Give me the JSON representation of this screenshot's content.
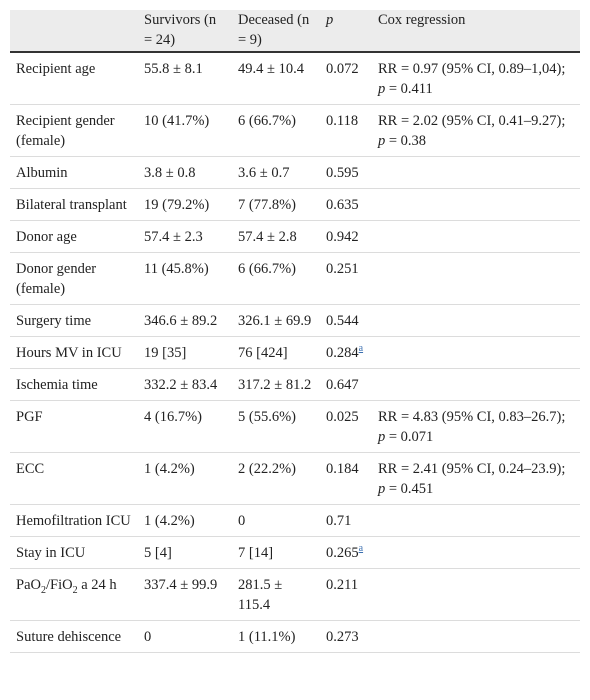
{
  "table": {
    "header": [
      "Survivors (n = 24)",
      "Deceased (n = 9)",
      {
        "i": "p"
      },
      "Cox regression"
    ],
    "rows": [
      [
        "Recipient age",
        "55.8 ± 8.1",
        "49.4 ± 10.4",
        "0.072",
        [
          "RR = 0.97 (95% CI, 0.89–1,04); ",
          {
            "i": "p"
          },
          " = 0.411"
        ]
      ],
      [
        "Recipient gender (female)",
        "10 (41.7%)",
        "6 (66.7%)",
        "0.118",
        [
          "RR = 2.02 (95% CI, 0.41–9.27); ",
          {
            "i": "p"
          },
          " = 0.38"
        ]
      ],
      [
        "Albumin",
        "3.8 ± 0.8",
        "3.6 ± 0.7",
        "0.595"
      ],
      [
        "Bilateral transplant",
        "19 (79.2%)",
        "7 (77.8%)",
        "0.635"
      ],
      [
        "Donor age",
        "57.4 ± 2.3",
        "57.4 ± 2.8",
        "0.942"
      ],
      [
        "Donor gender (female)",
        "11 (45.8%)",
        "6 (66.7%)",
        "0.251"
      ],
      [
        "Surgery time",
        "346.6 ± 89.2",
        "326.1 ± 69.9",
        "0.544"
      ],
      [
        "Hours MV in ICU",
        "19 [35]",
        "76 [424]",
        [
          "0.284",
          {
            "sup": "a"
          }
        ]
      ],
      [
        "Ischemia time",
        "332.2 ± 83.4",
        "317.2 ± 81.2",
        "0.647"
      ],
      [
        "PGF",
        "4 (16.7%)",
        "5 (55.6%)",
        "0.025",
        [
          "RR = 4.83 (95% CI, 0.83–26.7); ",
          {
            "i": "p"
          },
          " = 0.071"
        ]
      ],
      [
        "ECC",
        "1 (4.2%)",
        "2 (22.2%)",
        "0.184",
        [
          "RR = 2.41 (95% CI, 0.24–23.9); ",
          {
            "i": "p"
          },
          " = 0.451"
        ]
      ],
      [
        "Hemofiltration ICU",
        "1 (4.2%)",
        "0",
        "0.71"
      ],
      [
        "Stay in ICU",
        "5 [4]",
        "7 [14]",
        [
          "0.265",
          {
            "sup": "a"
          }
        ]
      ],
      [
        [
          "PaO",
          {
            "sub": "2"
          },
          "/FiO",
          {
            "sub": "2"
          },
          " a 24 h"
        ],
        "337.4 ± 99.9",
        "281.5 ± 115.4",
        "0.211"
      ],
      [
        "Suture dehiscence",
        "0",
        "1 (11.1%)",
        "0.273"
      ]
    ]
  }
}
